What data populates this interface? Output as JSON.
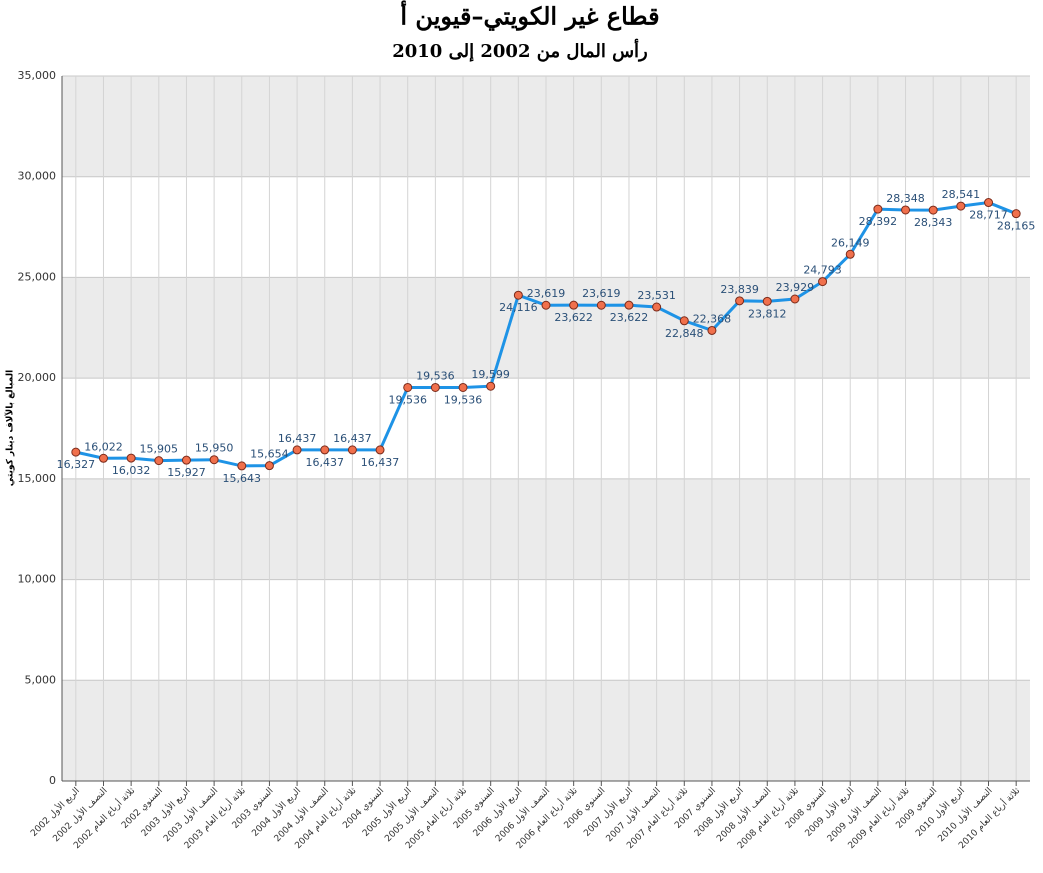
{
  "chart_data": {
    "type": "line",
    "title": "قطاع غير الكويتي–قيوين أ",
    "subtitle": "رأس المال من 2002 إلى 2010",
    "y_label": "المبالغ بالآلاف دينار كويتي",
    "categories": [
      "الربع الأول 2002",
      "النصف الأول 2002",
      "ثلاثة أرباع العام 2002",
      "السنوي 2002",
      "الربع الأول 2003",
      "النصف الأول 2003",
      "ثلاثة أرباع العام 2003",
      "السنوي 2003",
      "الربع الأول 2004",
      "النصف الأول 2004",
      "ثلاثة أرباع العام 2004",
      "السنوي 2004",
      "الربع الأول 2005",
      "النصف الأول 2005",
      "ثلاثة أرباع العام 2005",
      "السنوي 2005",
      "الربع الأول 2006",
      "النصف الأول 2006",
      "ثلاثة أرباع العام 2006",
      "السنوي 2006",
      "الربع الأول 2007",
      "النصف الأول 2007",
      "ثلاثة أرباع العام 2007",
      "السنوي 2007",
      "الربع الأول 2008",
      "النصف الأول 2008",
      "ثلاثة أرباع العام 2008",
      "السنوي 2008",
      "الربع الأول 2009",
      "النصف الأول 2009",
      "ثلاثة أرباع العام 2009",
      "السنوي 2009",
      "الربع الأول 2010",
      "النصف الأول 2010",
      "ثلاثة أرباع العام 2010"
    ],
    "series": [
      {
        "name": "رأس المال",
        "color": "#1e93e6",
        "marker_color": "#f0704c",
        "values": [
          16327,
          16022,
          16032,
          15905,
          15927,
          15950,
          15643,
          15654,
          16437,
          16437,
          16437,
          16437,
          19536,
          19536,
          19536,
          19599,
          24116,
          23619,
          23622,
          23619,
          23622,
          23531,
          22848,
          22368,
          23839,
          23812,
          23929,
          24793,
          26149,
          28392,
          28348,
          28343,
          28541,
          28717,
          28165
        ],
        "value_labels": [
          "16,327",
          "16,022",
          "16,032",
          "15,905",
          "15,927",
          "15,950",
          "15,643",
          "15,654",
          "16,437",
          "16,437",
          "16,437",
          "16,437",
          "19,536",
          "19,536",
          "19,536",
          "19,599",
          "24,116",
          "23,619",
          "23,622",
          "23,619",
          "23,622",
          "23,531",
          "22,848",
          "22,368",
          "23,839",
          "23,812",
          "23,929",
          "24,793",
          "26,149",
          "28,392",
          "28,348",
          "28,343",
          "28,541",
          "28,717",
          "28,165"
        ]
      }
    ],
    "ylim": [
      0,
      35000
    ],
    "yticks": [
      0,
      {
        "value": 5000,
        "label": "5,000"
      },
      {
        "value": 10000,
        "label": "10,000"
      },
      {
        "value": 15000,
        "label": "15,000"
      },
      {
        "value": 20000,
        "label": "20,000"
      },
      {
        "value": 25000,
        "label": "25,000"
      },
      {
        "value": 30000,
        "label": "30,000"
      },
      {
        "value": 35000,
        "label": "35,000"
      }
    ],
    "grid": true,
    "band_color": "#ebebeb"
  }
}
